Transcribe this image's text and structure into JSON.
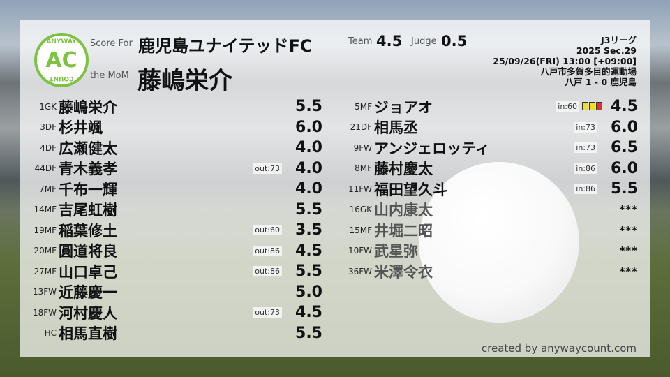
{
  "header": {
    "score_for_label": "Score For",
    "team_name": "鹿児島ユナイテッドFC",
    "mom_label": "the MoM",
    "mom_name": "藤嶋栄介",
    "team_label": "Team",
    "team_score": "4.5",
    "judge_label": "Judge",
    "judge_score": "0.5"
  },
  "logo": {
    "top_text": "ANYWAY",
    "center_text": "AC",
    "bottom_text": "COUNT",
    "color": "#7dc242"
  },
  "match": {
    "league": "J3リーグ",
    "section": "2025 Sec.29",
    "datetime": "25/09/26(FRI) 13:00 [+09:00]",
    "venue": "八戸市多賀多目的運動場",
    "result": "八戸 1 - 0 鹿児島"
  },
  "left_players": [
    {
      "num": "1GK",
      "name": "藤嶋栄介",
      "badge": "",
      "score": "5.5"
    },
    {
      "num": "3DF",
      "name": "杉井颯",
      "badge": "",
      "score": "6.0"
    },
    {
      "num": "4DF",
      "name": "広瀬健太",
      "badge": "",
      "score": "4.0"
    },
    {
      "num": "44DF",
      "name": "青木義孝",
      "badge": "out:73",
      "score": "4.0"
    },
    {
      "num": "7MF",
      "name": "千布一輝",
      "badge": "",
      "score": "4.0"
    },
    {
      "num": "14MF",
      "name": "吉尾虹樹",
      "badge": "",
      "score": "5.5"
    },
    {
      "num": "19MF",
      "name": "稲葉修土",
      "badge": "out:60",
      "score": "3.5"
    },
    {
      "num": "20MF",
      "name": "圓道将良",
      "badge": "out:86",
      "score": "4.5"
    },
    {
      "num": "27MF",
      "name": "山口卓己",
      "badge": "out:86",
      "score": "5.5"
    },
    {
      "num": "13FW",
      "name": "近藤慶一",
      "badge": "",
      "score": "5.0"
    },
    {
      "num": "18FW",
      "name": "河村慶人",
      "badge": "out:73",
      "score": "4.5"
    },
    {
      "num": "HC",
      "name": "相馬直樹",
      "badge": "",
      "score": "5.5"
    }
  ],
  "right_players": [
    {
      "num": "5MF",
      "name": "ジョアオ",
      "badge": "in:60",
      "cards": [
        "yellow",
        "yellow",
        "red"
      ],
      "score": "4.5"
    },
    {
      "num": "21DF",
      "name": "相馬丞",
      "badge": "in:73",
      "score": "6.0"
    },
    {
      "num": "9FW",
      "name": "アンジェロッティ",
      "badge": "in:73",
      "score": "6.5"
    },
    {
      "num": "8MF",
      "name": "藤村慶太",
      "badge": "in:86",
      "score": "6.0"
    },
    {
      "num": "11FW",
      "name": "福田望久斗",
      "badge": "in:86",
      "score": "5.5"
    },
    {
      "num": "16GK",
      "name": "山内康太",
      "badge": "",
      "score": "***",
      "unused": true
    },
    {
      "num": "15MF",
      "name": "井堀二昭",
      "badge": "",
      "score": "***",
      "unused": true
    },
    {
      "num": "10FW",
      "name": "武星弥",
      "badge": "",
      "score": "***",
      "unused": true
    },
    {
      "num": "36FW",
      "name": "米澤令衣",
      "badge": "",
      "score": "***",
      "unused": true
    }
  ],
  "card_colors": {
    "yellow": "#f0e020",
    "red": "#e03030"
  },
  "footer": {
    "credit": "created by anywaycount.com"
  }
}
